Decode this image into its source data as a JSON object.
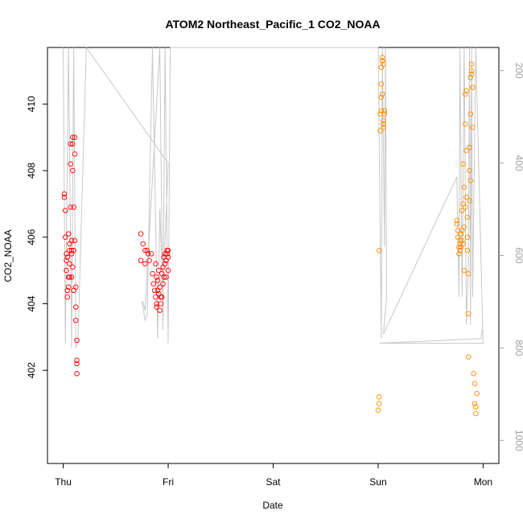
{
  "chart_data": {
    "type": "scatter",
    "title": "ATOM2 Northeast_Pacific_1 CO2_NOAA",
    "xlabel": "Date",
    "ylabel": "CO2_NOAA",
    "x_tick_labels": [
      "Thu",
      "Fri",
      "Sat",
      "Sun",
      "Mon"
    ],
    "x_tick_days": [
      0,
      1,
      2,
      3,
      4
    ],
    "xlim_days": [
      -0.15,
      4.15
    ],
    "ylim": [
      399.2,
      411.7
    ],
    "y_ticks": [
      402,
      404,
      406,
      408,
      410
    ],
    "y2_ticks": [
      200,
      400,
      600,
      800,
      1000
    ],
    "y2lim": [
      1050,
      150
    ],
    "y2_reversed": true,
    "grid": false,
    "colors": {
      "day1": "#ff0000",
      "day2": "#ff0000",
      "day3": "#ff8c00",
      "day4": "#ff8c00",
      "pressure": "#c8c8c8"
    },
    "series": [
      {
        "group": "day1",
        "color": "#ff0000",
        "points": [
          [
            0.01,
            407.3
          ],
          [
            0.01,
            407.2
          ],
          [
            0.02,
            406.8
          ],
          [
            0.02,
            406.0
          ],
          [
            0.03,
            405.5
          ],
          [
            0.03,
            405.3
          ],
          [
            0.03,
            405.0
          ],
          [
            0.04,
            404.4
          ],
          [
            0.04,
            404.2
          ],
          [
            0.05,
            404.8
          ],
          [
            0.05,
            406.1
          ],
          [
            0.06,
            405.6
          ],
          [
            0.06,
            405.2
          ],
          [
            0.06,
            404.8
          ],
          [
            0.07,
            406.9
          ],
          [
            0.07,
            408.2
          ],
          [
            0.07,
            408.8
          ],
          [
            0.08,
            405.9
          ],
          [
            0.08,
            405.5
          ],
          [
            0.08,
            404.8
          ],
          [
            0.09,
            405.1
          ],
          [
            0.09,
            408.8
          ],
          [
            0.09,
            409.0
          ],
          [
            0.1,
            406.9
          ],
          [
            0.1,
            405.6
          ],
          [
            0.1,
            404.4
          ],
          [
            0.11,
            408.5
          ],
          [
            0.11,
            409.0
          ],
          [
            0.11,
            405.9
          ],
          [
            0.12,
            404.5
          ],
          [
            0.12,
            403.9
          ],
          [
            0.12,
            403.5
          ],
          [
            0.13,
            402.9
          ],
          [
            0.13,
            402.3
          ],
          [
            0.13,
            402.2
          ],
          [
            0.13,
            401.9
          ],
          [
            0.04,
            405.4
          ],
          [
            0.05,
            404.5
          ],
          [
            0.06,
            405.8
          ],
          [
            0.08,
            405.6
          ],
          [
            0.09,
            408.0
          ]
        ]
      },
      {
        "group": "day2",
        "color": "#ff0000",
        "points": [
          [
            0.74,
            406.1
          ],
          [
            0.74,
            405.3
          ],
          [
            0.76,
            405.8
          ],
          [
            0.78,
            405.6
          ],
          [
            0.78,
            405.2
          ],
          [
            0.8,
            405.6
          ],
          [
            0.81,
            405.5
          ],
          [
            0.82,
            405.3
          ],
          [
            0.84,
            405.5
          ],
          [
            0.85,
            404.9
          ],
          [
            0.86,
            404.6
          ],
          [
            0.87,
            404.4
          ],
          [
            0.88,
            405.2
          ],
          [
            0.88,
            404.2
          ],
          [
            0.89,
            404.8
          ],
          [
            0.89,
            404.0
          ],
          [
            0.9,
            404.7
          ],
          [
            0.91,
            405.0
          ],
          [
            0.92,
            404.5
          ],
          [
            0.93,
            404.2
          ],
          [
            0.93,
            404.0
          ],
          [
            0.94,
            404.9
          ],
          [
            0.95,
            405.1
          ],
          [
            0.96,
            405.4
          ],
          [
            0.97,
            405.5
          ],
          [
            0.97,
            405.2
          ],
          [
            0.98,
            405.3
          ],
          [
            0.98,
            404.8
          ],
          [
            0.99,
            405.6
          ],
          [
            1.0,
            405.6
          ],
          [
            1.0,
            405.4
          ],
          [
            1.0,
            405.0
          ],
          [
            0.9,
            404.4
          ],
          [
            0.92,
            403.8
          ],
          [
            0.94,
            404.2
          ],
          [
            0.96,
            404.8
          ],
          [
            0.95,
            404.6
          ],
          [
            0.91,
            404.3
          ],
          [
            0.89,
            403.9
          ],
          [
            0.99,
            405.5
          ]
        ]
      },
      {
        "group": "day3",
        "color": "#ff8c00",
        "points": [
          [
            3.0,
            400.8
          ],
          [
            3.01,
            401.2
          ],
          [
            3.01,
            401.0
          ],
          [
            3.01,
            405.6
          ],
          [
            3.02,
            409.2
          ],
          [
            3.02,
            409.7
          ],
          [
            3.03,
            409.8
          ],
          [
            3.03,
            410.2
          ],
          [
            3.03,
            410.6
          ],
          [
            3.03,
            411.1
          ],
          [
            3.04,
            411.3
          ],
          [
            3.04,
            411.4
          ],
          [
            3.04,
            411.3
          ],
          [
            3.05,
            409.3
          ],
          [
            3.05,
            409.4
          ],
          [
            3.05,
            409.5
          ],
          [
            3.06,
            409.8
          ],
          [
            3.06,
            409.7
          ],
          [
            3.04,
            410.3
          ],
          [
            3.05,
            411.2
          ]
        ]
      },
      {
        "group": "day4",
        "color": "#ff8c00",
        "points": [
          [
            3.75,
            406.5
          ],
          [
            3.75,
            406.4
          ],
          [
            3.76,
            406.2
          ],
          [
            3.76,
            406.0
          ],
          [
            3.77,
            405.7
          ],
          [
            3.77,
            405.5
          ],
          [
            3.78,
            405.9
          ],
          [
            3.78,
            405.6
          ],
          [
            3.79,
            405.7
          ],
          [
            3.8,
            406.8
          ],
          [
            3.8,
            406.2
          ],
          [
            3.81,
            407.0
          ],
          [
            3.81,
            408.2
          ],
          [
            3.81,
            405.8
          ],
          [
            3.82,
            407.5
          ],
          [
            3.82,
            406.3
          ],
          [
            3.83,
            406.9
          ],
          [
            3.83,
            410.3
          ],
          [
            3.83,
            409.4
          ],
          [
            3.84,
            410.4
          ],
          [
            3.84,
            408.6
          ],
          [
            3.85,
            405.6
          ],
          [
            3.85,
            406.0
          ],
          [
            3.86,
            404.9
          ],
          [
            3.86,
            403.7
          ],
          [
            3.86,
            402.4
          ],
          [
            3.87,
            407.1
          ],
          [
            3.87,
            408.7
          ],
          [
            3.88,
            407.7
          ],
          [
            3.88,
            409.7
          ],
          [
            3.88,
            410.8
          ],
          [
            3.89,
            411.2
          ],
          [
            3.89,
            411.0
          ],
          [
            3.9,
            410.5
          ],
          [
            3.9,
            410.5
          ],
          [
            3.9,
            409.3
          ],
          [
            3.91,
            401.9
          ],
          [
            3.92,
            401.6
          ],
          [
            3.92,
            401.0
          ],
          [
            3.93,
            400.9
          ],
          [
            3.93,
            400.7
          ],
          [
            3.94,
            401.3
          ],
          [
            3.8,
            405.9
          ],
          [
            3.82,
            405.0
          ],
          [
            3.84,
            407.2
          ],
          [
            3.79,
            406.1
          ],
          [
            3.78,
            405.8
          ],
          [
            3.87,
            408.0
          ],
          [
            3.85,
            406.6
          ],
          [
            3.89,
            410.9
          ]
        ]
      }
    ],
    "pressure_series": {
      "color": "#c8c8c8",
      "points": [
        [
          0.0,
          150
        ],
        [
          0.02,
          790
        ],
        [
          0.05,
          150
        ],
        [
          0.08,
          800
        ],
        [
          0.1,
          150
        ],
        [
          0.12,
          800
        ],
        [
          0.14,
          790
        ],
        [
          0.22,
          150
        ],
        [
          1.0,
          400
        ],
        [
          0.95,
          680
        ],
        [
          0.92,
          500
        ],
        [
          0.9,
          780
        ],
        [
          0.85,
          150
        ],
        [
          0.8,
          730
        ],
        [
          0.78,
          740
        ],
        [
          0.75,
          700
        ],
        [
          0.76,
          700
        ],
        [
          0.78,
          720
        ],
        [
          0.92,
          150
        ],
        [
          0.95,
          760
        ],
        [
          0.97,
          150
        ],
        [
          1.0,
          790
        ],
        [
          1.02,
          150
        ],
        [
          3.0,
          150
        ],
        [
          3.03,
          780
        ],
        [
          3.04,
          150
        ],
        [
          3.06,
          580
        ],
        [
          3.07,
          150
        ],
        [
          3.08,
          690
        ],
        [
          3.05,
          770
        ],
        [
          3.75,
          430
        ],
        [
          3.77,
          690
        ],
        [
          3.78,
          150
        ],
        [
          3.8,
          690
        ],
        [
          3.82,
          150
        ],
        [
          3.84,
          750
        ],
        [
          3.86,
          620
        ],
        [
          3.87,
          150
        ],
        [
          3.88,
          750
        ],
        [
          3.89,
          150
        ],
        [
          3.9,
          690
        ],
        [
          3.93,
          150
        ],
        [
          4.0,
          790
        ],
        [
          3.01,
          790
        ],
        [
          3.98,
          780
        ],
        [
          3.99,
          760
        ]
      ]
    }
  }
}
